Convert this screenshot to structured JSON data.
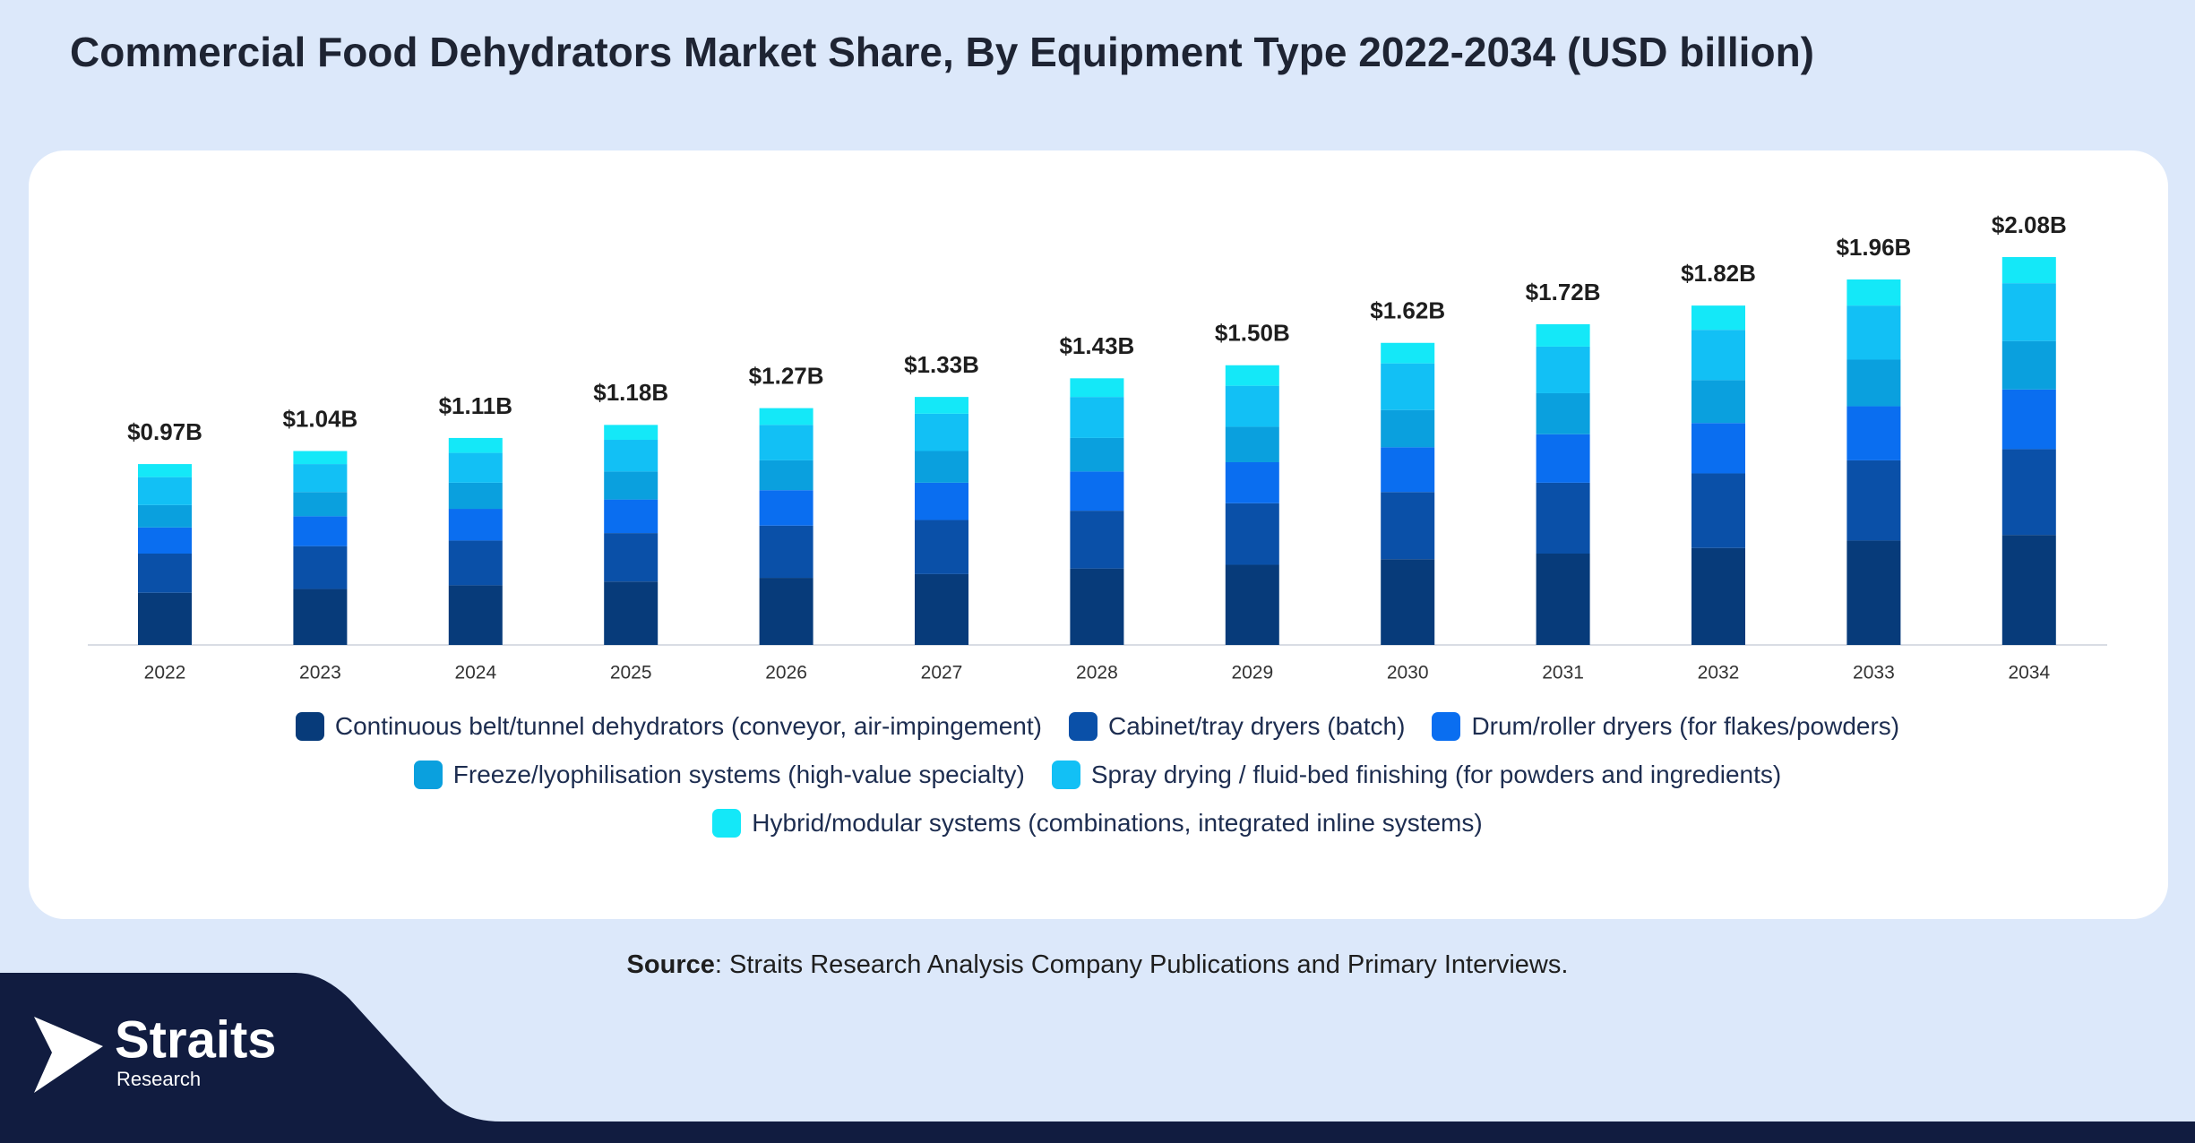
{
  "chart_data": {
    "type": "stacked-bar",
    "title": "Commercial Food Dehydrators Market Share, By Equipment Type 2022-2034 (USD billion)",
    "categories": [
      "2022",
      "2023",
      "2024",
      "2025",
      "2026",
      "2027",
      "2028",
      "2029",
      "2030",
      "2031",
      "2032",
      "2033",
      "2034"
    ],
    "series": [
      {
        "name": "Continuous belt/tunnel dehydrators (conveyor, air-impingement)",
        "color": "#073b7a",
        "values": [
          0.28,
          0.3,
          0.32,
          0.34,
          0.36,
          0.38,
          0.41,
          0.43,
          0.46,
          0.49,
          0.52,
          0.56,
          0.59
        ]
      },
      {
        "name": "Cabinet/tray dryers (batch)",
        "color": "#0a50a8",
        "values": [
          0.21,
          0.23,
          0.24,
          0.26,
          0.28,
          0.29,
          0.31,
          0.33,
          0.36,
          0.38,
          0.4,
          0.43,
          0.46
        ]
      },
      {
        "name": "Drum/roller dryers (for flakes/powders)",
        "color": "#0a6ef0",
        "values": [
          0.14,
          0.16,
          0.17,
          0.18,
          0.19,
          0.2,
          0.21,
          0.22,
          0.24,
          0.26,
          0.27,
          0.29,
          0.32
        ]
      },
      {
        "name": "Freeze/lyophilisation systems (high-value specialty)",
        "color": "#0aa0de",
        "values": [
          0.12,
          0.13,
          0.14,
          0.15,
          0.16,
          0.17,
          0.18,
          0.19,
          0.2,
          0.22,
          0.23,
          0.25,
          0.26
        ]
      },
      {
        "name": "Spray drying / fluid-bed finishing (for powders and ingredients)",
        "color": "#12c0f5",
        "values": [
          0.15,
          0.15,
          0.16,
          0.17,
          0.19,
          0.2,
          0.22,
          0.22,
          0.25,
          0.25,
          0.27,
          0.29,
          0.31
        ]
      },
      {
        "name": "Hybrid/modular systems (combinations, integrated inline systems)",
        "color": "#14e8f8",
        "values": [
          0.07,
          0.07,
          0.08,
          0.08,
          0.09,
          0.09,
          0.1,
          0.11,
          0.11,
          0.12,
          0.13,
          0.14,
          0.14
        ]
      }
    ],
    "totals": {
      "values": [
        0.97,
        1.04,
        1.11,
        1.18,
        1.27,
        1.33,
        1.43,
        1.5,
        1.62,
        1.72,
        1.82,
        1.96,
        2.08
      ],
      "value_labels": [
        "$0.97B",
        "$1.04B",
        "$1.11B",
        "$1.18B",
        "$1.27B",
        "$1.33B",
        "$1.43B",
        "$1.50B",
        "$1.62B",
        "$1.72B",
        "$1.82B",
        "$1.96B",
        "$2.08B"
      ]
    }
  },
  "source": {
    "label": "Source",
    "text": ": Straits Research Analysis Company Publications and Primary Interviews."
  },
  "logo": {
    "name": "Straits",
    "sub": "Research"
  }
}
